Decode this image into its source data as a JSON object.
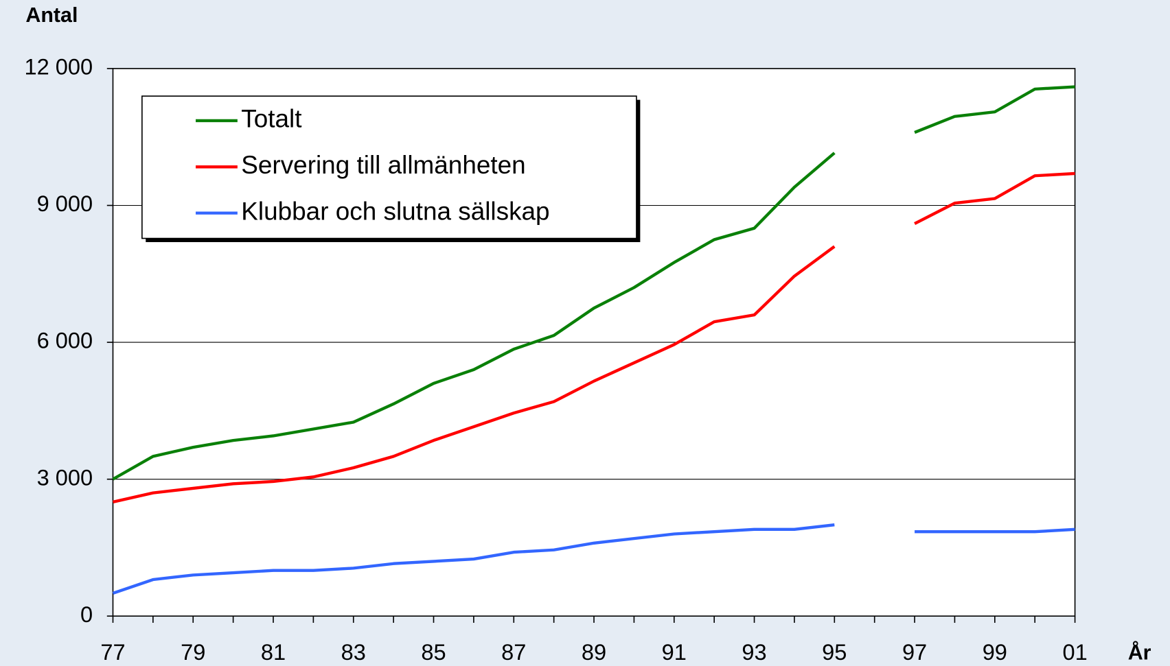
{
  "chart_data": {
    "type": "line",
    "y_label": "Antal",
    "x_label": "År",
    "categories": [
      "77",
      null,
      "79",
      null,
      "81",
      null,
      "83",
      null,
      "85",
      null,
      "87",
      null,
      "89",
      null,
      "91",
      null,
      "93",
      null,
      "95",
      null,
      "97",
      null,
      "99",
      null,
      "01"
    ],
    "series": [
      {
        "name": "Totalt",
        "color": "#0a8008",
        "values": [
          3000,
          3500,
          3700,
          3850,
          3950,
          4100,
          4250,
          4650,
          5100,
          5400,
          5850,
          6150,
          6750,
          7200,
          7750,
          8250,
          8500,
          9400,
          10150,
          null,
          10600,
          10950,
          11050,
          11550,
          11600
        ]
      },
      {
        "name": "Servering till allmänheten",
        "color": "#ff0000",
        "values": [
          2500,
          2700,
          2800,
          2900,
          2950,
          3050,
          3250,
          3500,
          3850,
          4150,
          4450,
          4700,
          5150,
          5550,
          5950,
          6450,
          6600,
          7450,
          8100,
          null,
          8600,
          9050,
          9150,
          9650,
          9700
        ]
      },
      {
        "name": "Klubbar och slutna sällskap",
        "color": "#3366ff",
        "values": [
          500,
          800,
          900,
          950,
          1000,
          1000,
          1050,
          1150,
          1200,
          1250,
          1400,
          1450,
          1600,
          1700,
          1800,
          1850,
          1900,
          1900,
          2000,
          null,
          1850,
          1850,
          1850,
          1850,
          1900
        ]
      }
    ],
    "ylim": [
      0,
      12000
    ],
    "yticks": [
      0,
      {
        "value": 3000,
        "label": "3 000"
      },
      {
        "value": 6000,
        "label": "6 000"
      },
      {
        "value": 9000,
        "label": "9 000"
      },
      {
        "value": 12000,
        "label": "12 000"
      }
    ],
    "grid": true,
    "legend": "top-left"
  }
}
